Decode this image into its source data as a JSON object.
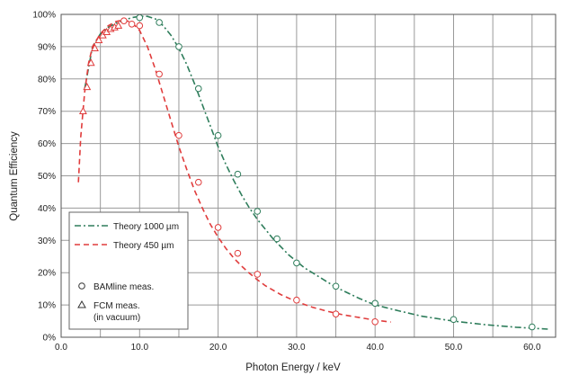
{
  "chart_data": {
    "type": "line",
    "title": "",
    "xlabel": "Photon Energy / keV",
    "ylabel": "Quantum Efficiency",
    "xlim": [
      0,
      63
    ],
    "ylim": [
      0,
      100
    ],
    "grid": true,
    "legend_position": "bottom-left",
    "x_ticks": [
      "0.0",
      "10.0",
      "20.0",
      "30.0",
      "40.0",
      "50.0",
      "60.0"
    ],
    "x_tick_values": [
      0,
      10,
      20,
      30,
      40,
      50,
      60
    ],
    "y_ticks": [
      "0%",
      "10%",
      "20%",
      "30%",
      "40%",
      "50%",
      "60%",
      "70%",
      "80%",
      "90%",
      "100%"
    ],
    "y_tick_values": [
      0,
      10,
      20,
      30,
      40,
      50,
      60,
      70,
      80,
      90,
      100
    ],
    "series": [
      {
        "name": "Theory 1000 µm",
        "kind": "line",
        "style": "dash-dot",
        "color": "#2e7d5b",
        "x": [
          3.0,
          4.0,
          5.0,
          6.0,
          7.0,
          8.0,
          9.0,
          10.0,
          11.0,
          12.0,
          13.0,
          14.0,
          15.0,
          16.0,
          17.0,
          18.0,
          19.0,
          20.0,
          21.0,
          22.0,
          23.0,
          24.0,
          25.0,
          27.0,
          29.0,
          31.0,
          33.0,
          35.0,
          38.0,
          40.0,
          43.0,
          46.0,
          50.0,
          54.0,
          58.0,
          62.0
        ],
        "y": [
          77,
          90,
          94,
          96,
          97.3,
          98.2,
          99.0,
          99.4,
          99.4,
          98.6,
          96.5,
          93.5,
          89.5,
          84.5,
          78.5,
          72,
          65.5,
          59,
          53.5,
          48.5,
          44,
          40,
          36.5,
          30.5,
          25.5,
          21.5,
          18.5,
          15.5,
          12,
          10,
          8.2,
          6.5,
          5,
          3.9,
          3.1,
          2.5
        ]
      },
      {
        "name": "Theory 450 µm",
        "kind": "line",
        "style": "dashed",
        "color": "#e03c3c",
        "x": [
          2.2,
          2.5,
          3.0,
          3.5,
          4.0,
          5.0,
          6.0,
          7.0,
          8.0,
          9.0,
          10.0,
          11.0,
          12.0,
          13.0,
          14.0,
          15.0,
          16.0,
          17.0,
          18.0,
          19.0,
          20.0,
          21.0,
          22.0,
          23.0,
          24.0,
          25.0,
          26.0,
          28.0,
          30.0,
          32.0,
          34.0,
          36.0,
          38.0,
          40.0,
          42.0
        ],
        "y": [
          48,
          62,
          76,
          85,
          90,
          94,
          96.5,
          97.8,
          98.3,
          97.5,
          95,
          90,
          83,
          75,
          67,
          59,
          52,
          45.5,
          40,
          35,
          31,
          27.5,
          24.5,
          22,
          19.8,
          17.8,
          16,
          13.2,
          11,
          9.3,
          8,
          6.9,
          6.1,
          5.3,
          4.7
        ]
      },
      {
        "name": "BAMline meas. (1000 µm)",
        "kind": "points",
        "marker": "circle",
        "color": "#2e7d5b",
        "x": [
          10.0,
          12.5,
          15.0,
          17.5,
          20.0,
          22.5,
          25.0,
          27.5,
          30.0,
          35.0,
          40.0,
          50.0,
          60.0
        ],
        "y": [
          99,
          97.5,
          90,
          77,
          62.5,
          50.5,
          39,
          30.5,
          23,
          15.8,
          10.5,
          5.5,
          3.2
        ]
      },
      {
        "name": "BAMline meas. (450 µm)",
        "kind": "points",
        "marker": "circle",
        "color": "#e03c3c",
        "x": [
          8.0,
          9.0,
          10.0,
          12.5,
          15.0,
          17.5,
          20.0,
          22.5,
          25.0,
          30.0,
          35.0,
          40.0
        ],
        "y": [
          98,
          97,
          96.5,
          81.5,
          62.5,
          48,
          34,
          26,
          19.5,
          11.5,
          7.2,
          4.8
        ]
      },
      {
        "name": "FCM meas. (in vacuum)",
        "kind": "points",
        "marker": "triangle",
        "color": "#e03c3c",
        "x": [
          2.8,
          3.3,
          3.8,
          4.3,
          4.8,
          5.3,
          5.8,
          6.3,
          6.8,
          7.3
        ],
        "y": [
          70,
          77.5,
          85,
          89.5,
          92,
          93.5,
          94.5,
          95.5,
          96,
          96.5
        ]
      }
    ],
    "legend": {
      "items": [
        {
          "label": "Theory 1000 µm",
          "symbol": "dash-dot",
          "color": "#2e7d5b"
        },
        {
          "label": "Theory 450 µm",
          "symbol": "dashed",
          "color": "#e03c3c"
        },
        {
          "label": "BAMline meas.",
          "symbol": "circle",
          "color": "#333333"
        },
        {
          "label": "FCM meas.",
          "symbol": "triangle",
          "color": "#333333"
        },
        {
          "label": "(in vacuum)",
          "symbol": "none",
          "color": "#333333"
        }
      ]
    }
  }
}
